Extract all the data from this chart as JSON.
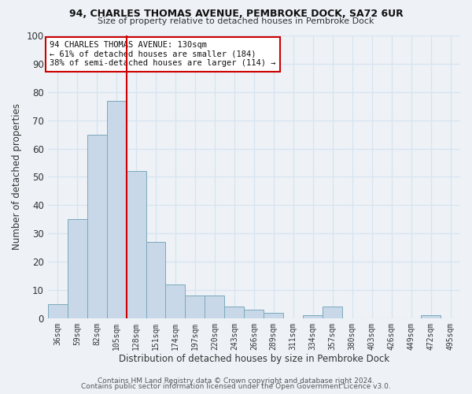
{
  "title1": "94, CHARLES THOMAS AVENUE, PEMBROKE DOCK, SA72 6UR",
  "title2": "Size of property relative to detached houses in Pembroke Dock",
  "xlabel": "Distribution of detached houses by size in Pembroke Dock",
  "ylabel": "Number of detached properties",
  "bar_labels": [
    "36sqm",
    "59sqm",
    "82sqm",
    "105sqm",
    "128sqm",
    "151sqm",
    "174sqm",
    "197sqm",
    "220sqm",
    "243sqm",
    "266sqm",
    "289sqm",
    "311sqm",
    "334sqm",
    "357sqm",
    "380sqm",
    "403sqm",
    "426sqm",
    "449sqm",
    "472sqm",
    "495sqm"
  ],
  "bar_values": [
    5,
    35,
    65,
    77,
    52,
    27,
    12,
    8,
    8,
    4,
    3,
    2,
    0,
    1,
    4,
    0,
    0,
    0,
    0,
    1,
    0
  ],
  "bar_color": "#c8d8e8",
  "bar_edge_color": "#7aaabb",
  "ylim": [
    0,
    100
  ],
  "yticks": [
    0,
    10,
    20,
    30,
    40,
    50,
    60,
    70,
    80,
    90,
    100
  ],
  "vline_color": "#cc0000",
  "annotation_line1": "94 CHARLES THOMAS AVENUE: 130sqm",
  "annotation_line2": "← 61% of detached houses are smaller (184)",
  "annotation_line3": "38% of semi-detached houses are larger (114) →",
  "annotation_box_color": "#ffffff",
  "annotation_box_edge": "#cc0000",
  "footer1": "Contains HM Land Registry data © Crown copyright and database right 2024.",
  "footer2": "Contains public sector information licensed under the Open Government Licence v3.0.",
  "background_color": "#eef2f7",
  "grid_color": "#d8e4f0"
}
